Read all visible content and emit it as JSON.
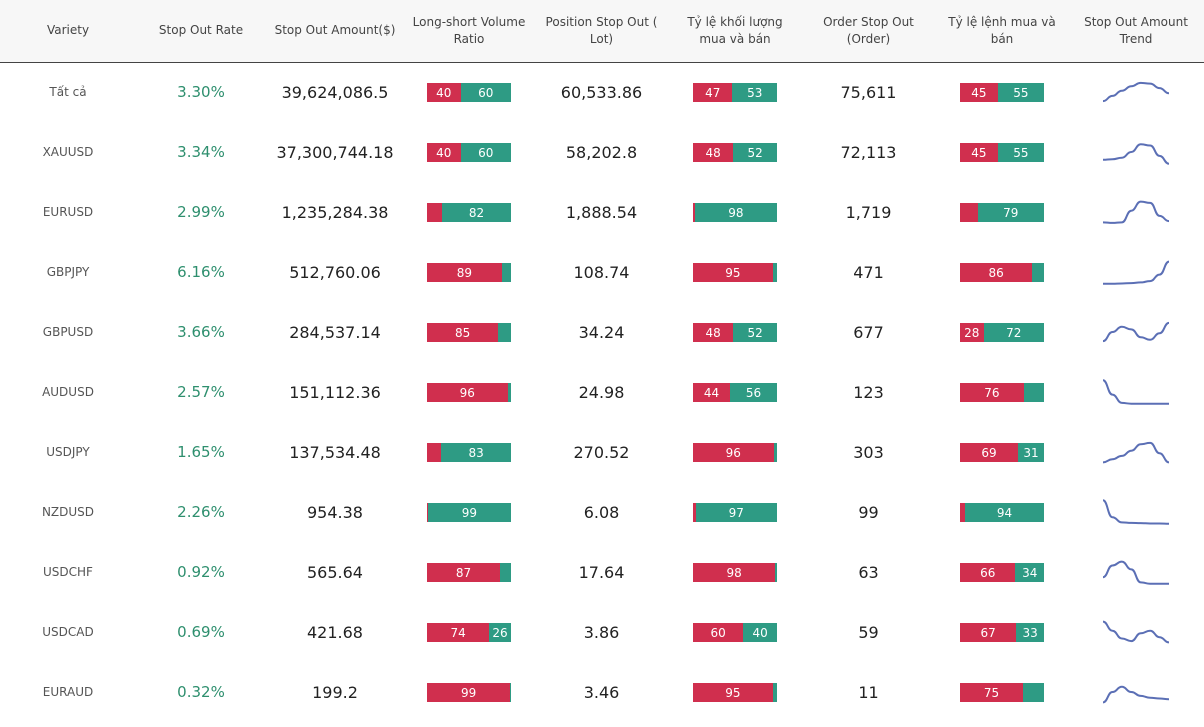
{
  "headers": {
    "variety": "Variety",
    "stop_out_rate": "Stop Out Rate",
    "stop_out_amount": "Stop Out Amount($)",
    "long_short_volume_ratio": "Long-short Volume Ratio",
    "position_stop_out": "Position Stop Out ( Lot)",
    "volume_buy_sell_ratio": "Tỷ lệ khối lượng mua và bán",
    "order_stop_out": "Order Stop Out (Order)",
    "order_buy_sell_ratio": "Tỷ lệ lệnh mua và bán",
    "stop_out_amount_trend": "Stop Out Amount Trend"
  },
  "colors": {
    "long": "#d02f4e",
    "short": "#2e9b84",
    "rate_text": "#2e8f6e",
    "trend_line": "#5b6fb5"
  },
  "rows": [
    {
      "variety": "Tất cả",
      "rate": "3.30%",
      "amount": "39,624,086.5",
      "ls_ratio": [
        40,
        60
      ],
      "ls_labels": [
        "40",
        "60"
      ],
      "position": "60,533.86",
      "vol_ratio": [
        47,
        53
      ],
      "vol_labels": [
        "47",
        "53"
      ],
      "orders": "75,611",
      "order_ratio": [
        45,
        55
      ],
      "order_labels": [
        "45",
        "55"
      ],
      "trend": [
        0.15,
        0.35,
        0.55,
        0.72,
        0.85,
        0.82,
        0.65,
        0.45
      ]
    },
    {
      "variety": "XAUUSD",
      "rate": "3.34%",
      "amount": "37,300,744.18",
      "ls_ratio": [
        40,
        60
      ],
      "ls_labels": [
        "40",
        "60"
      ],
      "position": "58,202.8",
      "vol_ratio": [
        48,
        52
      ],
      "vol_labels": [
        "48",
        "52"
      ],
      "orders": "72,113",
      "order_ratio": [
        45,
        55
      ],
      "order_labels": [
        "45",
        "55"
      ],
      "trend": [
        0.2,
        0.22,
        0.28,
        0.5,
        0.8,
        0.75,
        0.35,
        0.05
      ]
    },
    {
      "variety": "EURUSD",
      "rate": "2.99%",
      "amount": "1,235,284.38",
      "ls_ratio": [
        18,
        82
      ],
      "ls_labels": [
        "",
        "82"
      ],
      "position": "1,888.54",
      "vol_ratio": [
        2,
        98
      ],
      "vol_labels": [
        "",
        "98"
      ],
      "orders": "1,719",
      "order_ratio": [
        21,
        79
      ],
      "order_labels": [
        "",
        "79"
      ],
      "trend": [
        0.1,
        0.08,
        0.1,
        0.55,
        0.9,
        0.85,
        0.35,
        0.15
      ]
    },
    {
      "variety": "GBPJPY",
      "rate": "6.16%",
      "amount": "512,760.06",
      "ls_ratio": [
        89,
        11
      ],
      "ls_labels": [
        "89",
        ""
      ],
      "position": "108.74",
      "vol_ratio": [
        95,
        5
      ],
      "vol_labels": [
        "95",
        ""
      ],
      "orders": "471",
      "order_ratio": [
        86,
        14
      ],
      "order_labels": [
        "86",
        ""
      ],
      "trend": [
        0.05,
        0.05,
        0.06,
        0.07,
        0.1,
        0.15,
        0.4,
        0.9
      ]
    },
    {
      "variety": "GBPUSD",
      "rate": "3.66%",
      "amount": "284,537.14",
      "ls_ratio": [
        85,
        15
      ],
      "ls_labels": [
        "85",
        ""
      ],
      "position": "34.24",
      "vol_ratio": [
        48,
        52
      ],
      "vol_labels": [
        "48",
        "52"
      ],
      "orders": "677",
      "order_ratio": [
        28,
        72
      ],
      "order_labels": [
        "28",
        "72"
      ],
      "trend": [
        0.15,
        0.5,
        0.7,
        0.6,
        0.3,
        0.2,
        0.45,
        0.85
      ]
    },
    {
      "variety": "AUDUSD",
      "rate": "2.57%",
      "amount": "151,112.36",
      "ls_ratio": [
        96,
        4
      ],
      "ls_labels": [
        "96",
        ""
      ],
      "position": "24.98",
      "vol_ratio": [
        44,
        56
      ],
      "vol_labels": [
        "44",
        "56"
      ],
      "orders": "123",
      "order_ratio": [
        76,
        24
      ],
      "order_labels": [
        "76",
        ""
      ],
      "trend": [
        0.95,
        0.4,
        0.08,
        0.05,
        0.05,
        0.05,
        0.05,
        0.05
      ]
    },
    {
      "variety": "USDJPY",
      "rate": "1.65%",
      "amount": "137,534.48",
      "ls_ratio": [
        17,
        83
      ],
      "ls_labels": [
        "",
        "83"
      ],
      "position": "270.52",
      "vol_ratio": [
        96,
        4
      ],
      "vol_labels": [
        "96",
        ""
      ],
      "orders": "303",
      "order_ratio": [
        69,
        31
      ],
      "order_labels": [
        "69",
        "31"
      ],
      "trend": [
        0.1,
        0.22,
        0.35,
        0.55,
        0.8,
        0.85,
        0.45,
        0.1
      ]
    },
    {
      "variety": "NZDUSD",
      "rate": "2.26%",
      "amount": "954.38",
      "ls_ratio": [
        1,
        99
      ],
      "ls_labels": [
        "",
        "99"
      ],
      "position": "6.08",
      "vol_ratio": [
        3,
        97
      ],
      "vol_labels": [
        "",
        "97"
      ],
      "orders": "99",
      "order_ratio": [
        6,
        94
      ],
      "order_labels": [
        "",
        "94"
      ],
      "trend": [
        0.95,
        0.3,
        0.1,
        0.08,
        0.07,
        0.06,
        0.06,
        0.05
      ]
    },
    {
      "variety": "USDCHF",
      "rate": "0.92%",
      "amount": "565.64",
      "ls_ratio": [
        87,
        13
      ],
      "ls_labels": [
        "87",
        ""
      ],
      "position": "17.64",
      "vol_ratio": [
        98,
        2
      ],
      "vol_labels": [
        "98",
        ""
      ],
      "orders": "63",
      "order_ratio": [
        66,
        34
      ],
      "order_labels": [
        "66",
        "34"
      ],
      "trend": [
        0.3,
        0.75,
        0.9,
        0.6,
        0.1,
        0.05,
        0.05,
        0.05
      ]
    },
    {
      "variety": "USDCAD",
      "rate": "0.69%",
      "amount": "421.68",
      "ls_ratio": [
        74,
        26
      ],
      "ls_labels": [
        "74",
        "26"
      ],
      "position": "3.86",
      "vol_ratio": [
        60,
        40
      ],
      "vol_labels": [
        "60",
        "40"
      ],
      "orders": "59",
      "order_ratio": [
        67,
        33
      ],
      "order_labels": [
        "67",
        "33"
      ],
      "trend": [
        0.9,
        0.55,
        0.25,
        0.15,
        0.45,
        0.55,
        0.3,
        0.1
      ]
    },
    {
      "variety": "EURAUD",
      "rate": "0.32%",
      "amount": "199.2",
      "ls_ratio": [
        99,
        1
      ],
      "ls_labels": [
        "99",
        ""
      ],
      "position": "3.46",
      "vol_ratio": [
        95,
        5
      ],
      "vol_labels": [
        "95",
        ""
      ],
      "orders": "11",
      "order_ratio": [
        75,
        25
      ],
      "order_labels": [
        "75",
        ""
      ],
      "trend": [
        0.1,
        0.5,
        0.7,
        0.5,
        0.35,
        0.28,
        0.25,
        0.22
      ]
    }
  ]
}
